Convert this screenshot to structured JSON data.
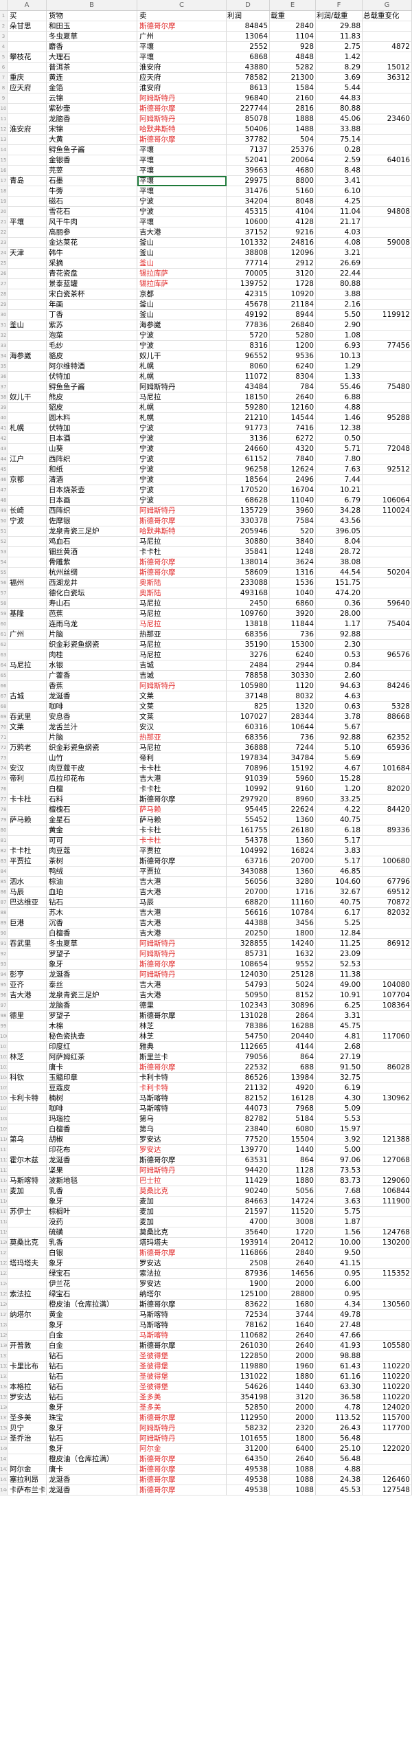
{
  "columns": [
    "A",
    "B",
    "C",
    "D",
    "E",
    "F",
    "G"
  ],
  "header": {
    "a": "买",
    "b": "货物",
    "c": "卖",
    "d": "利润",
    "e": "载重",
    "f": "利润/载重",
    "g": "总载重变化"
  },
  "rows": [
    [
      "朵甘思",
      "和田玉",
      "斯德哥尔摩",
      84845,
      2840,
      "29.88",
      ""
    ],
    [
      "",
      "冬虫夏草",
      "广州",
      13064,
      1104,
      "11.83",
      ""
    ],
    [
      "",
      "麝香",
      "平壤",
      2552,
      928,
      "2.75",
      4872
    ],
    [
      "攀枝花",
      "大理石",
      "平壤",
      6868,
      4848,
      "1.42",
      ""
    ],
    [
      "",
      "普洱茶",
      "淮安府",
      43880,
      5282,
      "8.29",
      15012
    ],
    [
      "重庆",
      "黄连",
      "应天府",
      78582,
      21300,
      "3.69",
      36312
    ],
    [
      "应天府",
      "金箔",
      "淮安府",
      8613,
      1584,
      "5.44",
      ""
    ],
    [
      "",
      "云锦",
      "阿姆斯特丹",
      96840,
      2160,
      "44.83",
      ""
    ],
    [
      "",
      "紫砂壶",
      "斯德哥尔摩",
      227744,
      2816,
      "80.88",
      ""
    ],
    [
      "",
      "龙脑香",
      "阿姆斯特丹",
      85078,
      1888,
      "45.06",
      23460
    ],
    [
      "淮安府",
      "宋锦",
      "哈默弗斯特",
      50406,
      1488,
      "33.88",
      ""
    ],
    [
      "",
      "大黄",
      "斯德哥尔摩",
      37782,
      504,
      "75.14",
      ""
    ],
    [
      "",
      "鲟鱼鱼子酱",
      "平壤",
      7137,
      25376,
      "0.28",
      ""
    ],
    [
      "",
      "金银香",
      "平壤",
      52041,
      20064,
      "2.59",
      64016
    ],
    [
      "",
      "芫荽",
      "平壤",
      39663,
      4680,
      "8.48",
      ""
    ],
    [
      "青岛",
      "石墨",
      "平壤",
      29975,
      8800,
      "3.41",
      ""
    ],
    [
      "",
      "牛蒡",
      "平壤",
      31476,
      5160,
      "6.10",
      ""
    ],
    [
      "",
      "磁石",
      "宁波",
      34204,
      8048,
      "4.25",
      ""
    ],
    [
      "",
      "雪花石",
      "宁波",
      45315,
      4104,
      "11.04",
      94808
    ],
    [
      "平壤",
      "风干牛肉",
      "平壤",
      10600,
      4128,
      "21.17",
      ""
    ],
    [
      "",
      "高丽参",
      "吉大港",
      37152,
      9216,
      "4.03",
      ""
    ],
    [
      "",
      "金达莱花",
      "釜山",
      101332,
      24816,
      "4.08",
      59008
    ],
    [
      "天津",
      "韩牛",
      "釜山",
      38808,
      12096,
      "3.21",
      ""
    ],
    [
      "",
      "采摘",
      "釜山",
      77714,
      2912,
      "26.69",
      ""
    ],
    [
      "",
      "青花瓷盘",
      "锡拉库萨",
      70005,
      3120,
      "22.44",
      ""
    ],
    [
      "",
      "景泰蓝罐",
      "锡拉库萨",
      139752,
      1728,
      "80.88",
      ""
    ],
    [
      "",
      "宋白瓷茶杯",
      "京都",
      42315,
      10920,
      "3.88",
      ""
    ],
    [
      "",
      "年画",
      "釜山",
      45678,
      21184,
      "2.16",
      ""
    ],
    [
      "",
      "丁香",
      "釜山",
      49192,
      8944,
      "5.50",
      119912
    ],
    [
      "釜山",
      "紫苏",
      "海参崴",
      77836,
      26840,
      "2.90",
      ""
    ],
    [
      "",
      "泡菜",
      "宁波",
      5720,
      5280,
      "1.08",
      ""
    ],
    [
      "",
      "毛纱",
      "宁波",
      8316,
      1200,
      "6.93",
      77456
    ],
    [
      "海参崴",
      "貉皮",
      "奴儿干",
      96552,
      9536,
      "10.13",
      ""
    ],
    [
      "",
      "阿尔维特酒",
      "札幌",
      8060,
      6240,
      "1.29",
      ""
    ],
    [
      "",
      "伏特加",
      "札幌",
      11072,
      8304,
      "1.33",
      ""
    ],
    [
      "",
      "鲟鱼鱼子酱",
      "阿姆斯特丹",
      43484,
      784,
      "55.46",
      75480
    ],
    [
      "奴儿干",
      "熊皮",
      "马尼拉",
      18150,
      2640,
      "6.88",
      ""
    ],
    [
      "",
      "貂皮",
      "札幌",
      59280,
      12160,
      "4.88",
      ""
    ],
    [
      "",
      "圆木料",
      "札幌",
      21210,
      14544,
      "1.46",
      95288
    ],
    [
      "札幌",
      "伏特加",
      "宁波",
      91773,
      7416,
      "12.38",
      ""
    ],
    [
      "",
      "日本酒",
      "宁波",
      3136,
      6272,
      "0.50",
      ""
    ],
    [
      "",
      "山葵",
      "宁波",
      24660,
      4320,
      "5.71",
      72048
    ],
    [
      "江户",
      "西阵织",
      "宁波",
      61152,
      7840,
      "7.80",
      ""
    ],
    [
      "",
      "和纸",
      "宁波",
      96258,
      12624,
      "7.63",
      92512
    ],
    [
      "京都",
      "清酒",
      "宁波",
      18564,
      2496,
      "7.44",
      ""
    ],
    [
      "",
      "日本烧茶壶",
      "宁波",
      170520,
      16704,
      "10.21",
      ""
    ],
    [
      "",
      "日本画",
      "宁波",
      68628,
      11040,
      "6.79",
      106064
    ],
    [
      "长崎",
      "西阵织",
      "阿姆斯特丹",
      135729,
      3960,
      "34.28",
      110024
    ],
    [
      "宁波",
      "佐摩银",
      "斯德哥尔摩",
      330378,
      7584,
      "43.56",
      ""
    ],
    [
      "",
      "龙泉青瓷三足炉",
      "哈默弗斯特",
      205946,
      520,
      "396.05",
      ""
    ],
    [
      "",
      "鸡血石",
      "马尼拉",
      30880,
      3840,
      "8.04",
      ""
    ],
    [
      "",
      "钿丝黄酒",
      "卡卡杜",
      35841,
      1248,
      "28.72",
      ""
    ],
    [
      "",
      "骨雕紫",
      "斯德哥尔摩",
      138014,
      3624,
      "38.08",
      ""
    ],
    [
      "",
      "杭州丝绸",
      "斯德哥尔摩",
      58609,
      1316,
      "44.54",
      50204
    ],
    [
      "福州",
      "西湖龙井",
      "奥斯陆",
      233088,
      1536,
      "151.75",
      ""
    ],
    [
      "",
      "德化白瓷坛",
      "奥斯陆",
      493168,
      1040,
      "474.20",
      ""
    ],
    [
      "",
      "寿山石",
      "马尼拉",
      2450,
      6860,
      "0.36",
      59640
    ],
    [
      "基隆",
      "芭蕉",
      "马尼拉",
      109760,
      3920,
      "28.00",
      ""
    ],
    [
      "",
      "连雨乌龙",
      "马尼拉",
      13818,
      11844,
      "1.17",
      75404
    ],
    [
      "广州",
      "片脑",
      "热那亚",
      68356,
      736,
      "92.88",
      ""
    ],
    [
      "",
      "织金彩瓷鱼纲瓷",
      "马尼拉",
      35190,
      15300,
      "2.30",
      ""
    ],
    [
      "",
      "肉桂",
      "马尼拉",
      3276,
      6240,
      "0.53",
      96576
    ],
    [
      "马尼拉",
      "水银",
      "吉城",
      2484,
      2944,
      "0.84",
      ""
    ],
    [
      "",
      "广藿香",
      "吉城",
      78858,
      30330,
      "2.60",
      ""
    ],
    [
      "",
      "香蕉",
      "阿姆斯特丹",
      105980,
      1120,
      "94.63",
      84246
    ],
    [
      "古城",
      "龙涎香",
      "文莱",
      37148,
      8032,
      "4.63",
      ""
    ],
    [
      "",
      "咖啡",
      "文莱",
      825,
      1320,
      "0.63",
      5328
    ],
    [
      "吞武里",
      "安息香",
      "文莱",
      107027,
      28344,
      "3.78",
      88668
    ],
    [
      "文莱",
      "龙舌兰汁",
      "安汉",
      60316,
      10644,
      "5.67",
      ""
    ],
    [
      "",
      "片脑",
      "热那亚",
      68356,
      736,
      "92.88",
      62352
    ],
    [
      "万鸦老",
      "织金彩瓷鱼纲瓷",
      "马尼拉",
      36888,
      7244,
      "5.10",
      65936
    ],
    [
      "",
      "山竹",
      "帝利",
      197834,
      34784,
      "5.69",
      ""
    ],
    [
      "安汉",
      "肉豆蔻干皮",
      "卡卡杜",
      70896,
      15192,
      "4.67",
      101684
    ],
    [
      "帝利",
      "瓜拉印花布",
      "吉大港",
      91039,
      5960,
      "15.28",
      ""
    ],
    [
      "",
      "白檀",
      "卡卡杜",
      10992,
      9160,
      "1.20",
      82020
    ],
    [
      "卡卡杜",
      "石料",
      "斯德哥尔摩",
      297920,
      8960,
      "33.25",
      ""
    ],
    [
      "",
      "檀槐石",
      "萨马赖",
      95445,
      22624,
      "4.22",
      84420
    ],
    [
      "萨马赖",
      "金星石",
      "萨马赖",
      55452,
      1360,
      "40.75",
      ""
    ],
    [
      "",
      "黄金",
      "卡卡杜",
      161755,
      26180,
      "6.18",
      89336
    ],
    [
      "",
      "可可",
      "卡卡杜",
      54378,
      1360,
      "5.17",
      ""
    ],
    [
      "卡卡杜",
      "肉豆蔻",
      "平贾拉",
      104992,
      16824,
      "3.83",
      ""
    ],
    [
      "平贾拉",
      "茶树",
      "斯德哥尔摩",
      63716,
      20700,
      "5.17",
      100680
    ],
    [
      "",
      "鸭绒",
      "平贾拉",
      343088,
      1360,
      "46.85",
      ""
    ],
    [
      "泗水",
      "棕油",
      "吉大港",
      56056,
      3280,
      "104.60",
      67796
    ],
    [
      "马辰",
      "血珀",
      "吉大港",
      20700,
      1716,
      "32.67",
      69512
    ],
    [
      "巴达维亚",
      "钻石",
      "马辰",
      68820,
      11160,
      "40.75",
      70872
    ],
    [
      "",
      "苏木",
      "吉大港",
      56616,
      10784,
      "6.17",
      82032
    ],
    [
      "巨港",
      "沉香",
      "吉大港",
      44388,
      3456,
      "5.25",
      ""
    ],
    [
      "",
      "白檀香",
      "吉大港",
      20250,
      1800,
      "12.84",
      ""
    ],
    [
      "吞武里",
      "冬虫夏草",
      "阿姆斯特丹",
      328855,
      14240,
      "11.25",
      86912
    ],
    [
      "",
      "罗望子",
      "阿姆斯特丹",
      85731,
      1632,
      "23.09",
      ""
    ],
    [
      "",
      "象牙",
      "斯德哥尔摩",
      108654,
      9552,
      "52.53",
      ""
    ],
    [
      "彭亨",
      "龙涎香",
      "阿姆斯特丹",
      124030,
      25128,
      "11.38",
      ""
    ],
    [
      "亚齐",
      "泰丝",
      "吉大港",
      54793,
      5024,
      "49.00",
      104080
    ],
    [
      "吉大港",
      "龙泉青瓷三足炉",
      "吉大港",
      50950,
      8152,
      "10.91",
      107704
    ],
    [
      "",
      "龙脑香",
      "德里",
      102343,
      30896,
      "6.25",
      108364
    ],
    [
      "德里",
      "罗望子",
      "斯德哥尔摩",
      131028,
      2864,
      "3.31",
      ""
    ],
    [
      "",
      "木棉",
      "林芝",
      78386,
      16288,
      "45.75",
      ""
    ],
    [
      "",
      "秘色瓷执壶",
      "林芝",
      54750,
      20440,
      "4.81",
      117060
    ],
    [
      "",
      "印度红",
      "雅典",
      112665,
      4144,
      "2.68",
      ""
    ],
    [
      "林芝",
      "阿萨姆红茶",
      "斯里兰卡",
      79056,
      864,
      "27.19",
      ""
    ],
    [
      "",
      "唐卡",
      "斯德哥尔摩",
      22532,
      688,
      "91.50",
      86028
    ],
    [
      "科钦",
      "玉髓印章",
      "卡利卡特",
      86526,
      13984,
      "32.75",
      ""
    ],
    [
      "",
      "豆蔻皮",
      "卡利卡特",
      21132,
      4920,
      "6.19",
      ""
    ],
    [
      "卡利卡特",
      "楠树",
      "马斯喀特",
      82152,
      16128,
      "4.30",
      130962
    ],
    [
      "",
      "咖啡",
      "马斯喀特",
      44073,
      7968,
      "5.09",
      ""
    ],
    [
      "",
      "玛瑙拉",
      "第乌",
      82782,
      5184,
      "5.53",
      ""
    ],
    [
      "",
      "白檀香",
      "第乌",
      23840,
      6080,
      "15.97",
      ""
    ],
    [
      "第乌",
      "胡椒",
      "罗安达",
      77520,
      15504,
      "3.92",
      121388
    ],
    [
      "",
      "印花布",
      "罗安达",
      139770,
      1440,
      "5.00",
      ""
    ],
    [
      "霍尔木兹",
      "龙涎香",
      "斯德哥尔摩",
      63531,
      864,
      "97.06",
      127068
    ],
    [
      "",
      "坚果",
      "阿姆斯特丹",
      94420,
      1128,
      "73.53",
      ""
    ],
    [
      "马斯喀特",
      "波斯地毯",
      "巴士拉",
      11429,
      1880,
      "83.73",
      129060
    ],
    [
      "麦加",
      "乳香",
      "莫桑比克",
      90240,
      5056,
      "7.68",
      106844
    ],
    [
      "",
      "象牙",
      "麦加",
      84663,
      14724,
      "3.63",
      111900
    ],
    [
      "苏伊士",
      "棕榈叶",
      "麦加",
      21597,
      11520,
      "5.75",
      ""
    ],
    [
      "",
      "没药",
      "麦加",
      4700,
      3008,
      "1.87",
      ""
    ],
    [
      "",
      "硫磺",
      "莫桑比克",
      35640,
      1720,
      "1.56",
      124768
    ],
    [
      "莫桑比克",
      "乳香",
      "塔玛塔夫",
      193914,
      20412,
      "10.00",
      130200
    ],
    [
      "",
      "白银",
      "斯德哥尔摩",
      116866,
      2840,
      "9.50",
      ""
    ],
    [
      "塔玛塔夫",
      "象牙",
      "罗安达",
      2508,
      2640,
      "41.15",
      ""
    ],
    [
      "",
      "绿宝石",
      "索法拉",
      87936,
      14656,
      "0.95",
      115352
    ],
    [
      "",
      "伊兰花",
      "罗安达",
      1900,
      2000,
      "6.00",
      ""
    ],
    [
      "索法拉",
      "绿宝石",
      "纳塔尔",
      125100,
      28800,
      "0.95",
      ""
    ],
    [
      "",
      "橙皮油（仓库拉满）",
      "斯德哥尔摩",
      83622,
      1680,
      "4.34",
      130560
    ],
    [
      "纳塔尔",
      "黄金",
      "马斯喀特",
      72534,
      3744,
      "49.78",
      ""
    ],
    [
      "",
      "象牙",
      "马斯喀特",
      78162,
      1640,
      "27.48",
      ""
    ],
    [
      "",
      "白金",
      "马斯喀特",
      110682,
      2640,
      "47.66",
      ""
    ],
    [
      "开普敦",
      "白金",
      "斯德哥尔摩",
      261030,
      2640,
      "41.93",
      105580
    ],
    [
      "",
      "钻石",
      "圣彼得堡",
      122850,
      2000,
      "98.88",
      ""
    ],
    [
      "卡里比布",
      "钻石",
      "圣彼得堡",
      119880,
      1960,
      "61.43",
      110220
    ],
    [
      "",
      "钻石",
      "圣彼得堡",
      131022,
      1880,
      "61.16",
      110220
    ],
    [
      "本格拉",
      "钻石",
      "圣彼得堡",
      54626,
      1440,
      "63.30",
      110220
    ],
    [
      "罗安达",
      "钻石",
      "圣多美",
      354198,
      3120,
      "36.58",
      110220
    ],
    [
      "",
      "象牙",
      "圣多美",
      52850,
      2000,
      "4.78",
      124020
    ],
    [
      "圣多美",
      "珠宝",
      "斯德哥尔摩",
      112950,
      2000,
      "113.52",
      115700
    ],
    [
      "贝宁",
      "象牙",
      "阿姆斯特丹",
      58232,
      2320,
      "26.43",
      117700
    ],
    [
      "圣乔治",
      "钻石",
      "阿姆斯特丹",
      101655,
      1800,
      "56.48",
      ""
    ],
    [
      "",
      "象牙",
      "阿尔金",
      31200,
      6400,
      "25.10",
      122020
    ],
    [
      "",
      "橙皮油（仓库拉满）",
      "斯德哥尔摩",
      64350,
      2640,
      "56.48",
      ""
    ],
    [
      "阿尔金",
      "唐卡",
      "斯德哥尔摩",
      49538,
      1088,
      "4.88",
      ""
    ],
    [
      "塞拉利昂",
      "龙涎香",
      "斯德哥尔摩",
      49538,
      1088,
      "24.38",
      126460
    ],
    [
      "卡萨布兰卡",
      "龙涎香",
      "斯德哥尔摩",
      49538,
      1088,
      "45.53",
      127548
    ]
  ],
  "red_cells": [
    0,
    7,
    8,
    9,
    10,
    11,
    23,
    24,
    25,
    47,
    48,
    49,
    52,
    53,
    54,
    55,
    58,
    64,
    69,
    76,
    79,
    89,
    90,
    91,
    92,
    101,
    103,
    109,
    111,
    112,
    113,
    119,
    127,
    129,
    130,
    131,
    132,
    133,
    134,
    135,
    136,
    137,
    138,
    139,
    140,
    141,
    142,
    143
  ],
  "selected_row": 15
}
